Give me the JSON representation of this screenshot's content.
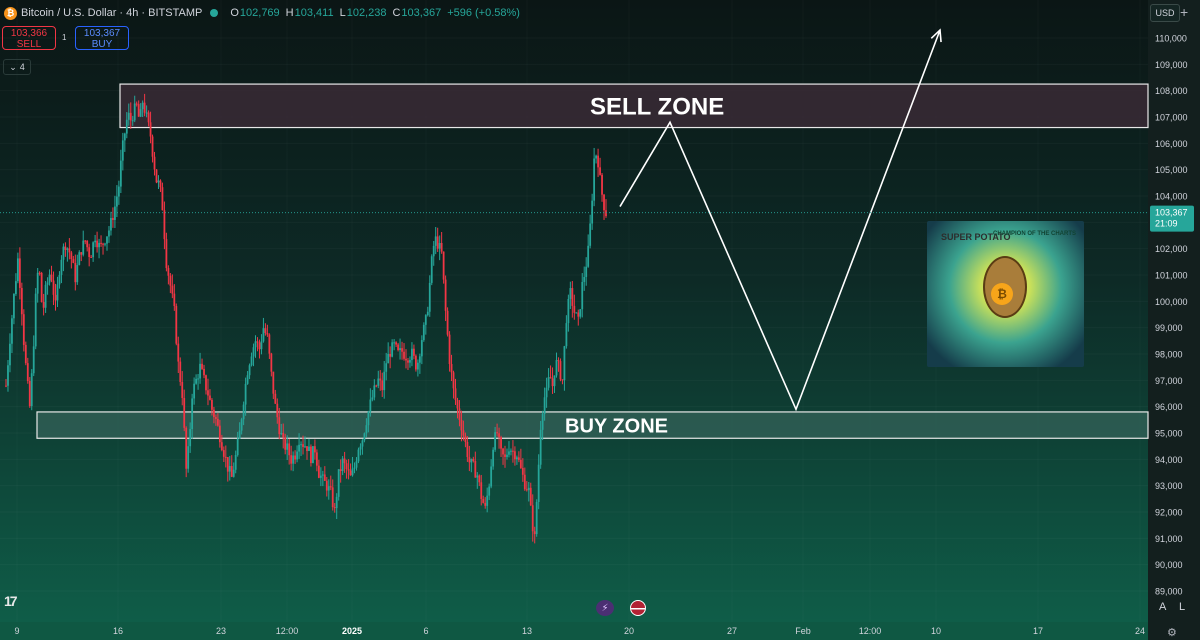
{
  "header": {
    "symbol": "Bitcoin / U.S. Dollar · 4h · BITSTAMP",
    "o_label": "O",
    "o": "102,769",
    "h_label": "H",
    "h": "103,411",
    "l_label": "L",
    "l": "102,238",
    "c_label": "C",
    "c": "103,367",
    "change": "+596 (+0.58%)",
    "btc_glyph": "₿",
    "icon": "bitcoin-icon"
  },
  "trade": {
    "sell_price": "103,366",
    "sell_label": "SELL",
    "buy_price": "103,367",
    "buy_label": "BUY",
    "spread": "1"
  },
  "indicators_count": "4",
  "currency": "USD",
  "axis_buttons": {
    "auto": "A",
    "log": "L"
  },
  "chart_data": {
    "type": "candlestick",
    "y_unit": "USD",
    "ylim": [
      88700,
      111300
    ],
    "y_ticks": [
      "89,000",
      "90,000",
      "91,000",
      "92,000",
      "93,000",
      "94,000",
      "95,000",
      "96,000",
      "97,000",
      "98,000",
      "99,000",
      "100,000",
      "101,000",
      "102,000",
      "103,000",
      "104,000",
      "105,000",
      "106,000",
      "107,000",
      "108,000",
      "109,000",
      "110,000"
    ],
    "x_ticks": [
      "9",
      "16",
      "23",
      "12:00",
      "2025",
      "6",
      "13",
      "20",
      "27",
      "Feb",
      "12:00",
      "10",
      "17",
      "24"
    ],
    "last_price": "103,367",
    "last_price_value": 103367,
    "countdown": "21:09",
    "candle_close_path": [
      [
        0,
        96800
      ],
      [
        4,
        98600
      ],
      [
        8,
        100200
      ],
      [
        12,
        101600
      ],
      [
        15,
        100300
      ],
      [
        18,
        98500
      ],
      [
        21,
        97100
      ],
      [
        24,
        96000
      ],
      [
        27,
        97700
      ],
      [
        30,
        100100
      ],
      [
        33,
        101500
      ],
      [
        37,
        99500
      ],
      [
        40,
        100400
      ],
      [
        45,
        101200
      ],
      [
        50,
        99800
      ],
      [
        55,
        101600
      ],
      [
        60,
        102200
      ],
      [
        65,
        101800
      ],
      [
        70,
        100900
      ],
      [
        75,
        101900
      ],
      [
        80,
        102300
      ],
      [
        85,
        101700
      ],
      [
        90,
        102500
      ],
      [
        95,
        102000
      ],
      [
        100,
        102400
      ],
      [
        105,
        102800
      ],
      [
        110,
        103600
      ],
      [
        114,
        104400
      ],
      [
        117,
        105600
      ],
      [
        120,
        106400
      ],
      [
        123,
        107100
      ],
      [
        126,
        106900
      ],
      [
        129,
        107200
      ],
      [
        132,
        107400
      ],
      [
        135,
        106800
      ],
      [
        138,
        107600
      ],
      [
        140,
        107300
      ],
      [
        143,
        106800
      ],
      [
        146,
        106300
      ],
      [
        149,
        105400
      ],
      [
        152,
        104600
      ],
      [
        155,
        104400
      ],
      [
        158,
        103600
      ],
      [
        162,
        101500
      ],
      [
        166,
        100600
      ],
      [
        170,
        99600
      ],
      [
        174,
        97600
      ],
      [
        178,
        96500
      ],
      [
        182,
        93600
      ],
      [
        185,
        94600
      ],
      [
        188,
        96500
      ],
      [
        192,
        97000
      ],
      [
        196,
        97500
      ],
      [
        200,
        97000
      ],
      [
        204,
        96500
      ],
      [
        208,
        95900
      ],
      [
        212,
        95500
      ],
      [
        216,
        94900
      ],
      [
        220,
        94300
      ],
      [
        224,
        93700
      ],
      [
        228,
        93300
      ],
      [
        232,
        94100
      ],
      [
        236,
        95000
      ],
      [
        240,
        96300
      ],
      [
        244,
        97400
      ],
      [
        248,
        98100
      ],
      [
        252,
        98500
      ],
      [
        256,
        98200
      ],
      [
        260,
        99000
      ],
      [
        264,
        98600
      ],
      [
        268,
        97200
      ],
      [
        272,
        96000
      ],
      [
        276,
        95200
      ],
      [
        280,
        94600
      ],
      [
        284,
        94400
      ],
      [
        288,
        94000
      ],
      [
        292,
        94200
      ],
      [
        296,
        94800
      ],
      [
        300,
        94600
      ],
      [
        304,
        94500
      ],
      [
        308,
        94100
      ],
      [
        312,
        94400
      ],
      [
        316,
        93500
      ],
      [
        320,
        93200
      ],
      [
        324,
        93000
      ],
      [
        328,
        92700
      ],
      [
        332,
        92000
      ],
      [
        336,
        93400
      ],
      [
        340,
        93900
      ],
      [
        344,
        93600
      ],
      [
        348,
        93300
      ],
      [
        352,
        93700
      ],
      [
        356,
        94500
      ],
      [
        360,
        94800
      ],
      [
        364,
        95500
      ],
      [
        368,
        96100
      ],
      [
        372,
        96600
      ],
      [
        376,
        97000
      ],
      [
        380,
        96700
      ],
      [
        384,
        97700
      ],
      [
        388,
        98100
      ],
      [
        392,
        98300
      ],
      [
        396,
        98000
      ],
      [
        400,
        98100
      ],
      [
        405,
        97900
      ],
      [
        410,
        98000
      ],
      [
        415,
        97500
      ],
      [
        420,
        98600
      ],
      [
        425,
        99400
      ],
      [
        430,
        101500
      ],
      [
        433,
        102400
      ],
      [
        436,
        102200
      ],
      [
        440,
        101800
      ],
      [
        444,
        99600
      ],
      [
        448,
        97800
      ],
      [
        452,
        96600
      ],
      [
        456,
        95900
      ],
      [
        460,
        95300
      ],
      [
        464,
        94600
      ],
      [
        468,
        93900
      ],
      [
        472,
        93700
      ],
      [
        476,
        93400
      ],
      [
        480,
        92600
      ],
      [
        484,
        92100
      ],
      [
        488,
        93100
      ],
      [
        492,
        94600
      ],
      [
        496,
        95000
      ],
      [
        500,
        94200
      ],
      [
        504,
        94000
      ],
      [
        508,
        94500
      ],
      [
        512,
        94300
      ],
      [
        516,
        94200
      ],
      [
        520,
        93600
      ],
      [
        524,
        93100
      ],
      [
        528,
        92800
      ],
      [
        531,
        91700
      ],
      [
        534,
        91000
      ],
      [
        537,
        93100
      ],
      [
        540,
        95300
      ],
      [
        543,
        96300
      ],
      [
        546,
        96500
      ],
      [
        549,
        97200
      ],
      [
        552,
        96800
      ],
      [
        555,
        97700
      ],
      [
        558,
        97500
      ],
      [
        562,
        97000
      ],
      [
        566,
        99400
      ],
      [
        570,
        100300
      ],
      [
        574,
        99600
      ],
      [
        578,
        99200
      ],
      [
        582,
        100600
      ],
      [
        585,
        101200
      ],
      [
        588,
        101900
      ],
      [
        591,
        103300
      ],
      [
        594,
        105400
      ],
      [
        597,
        105700
      ],
      [
        600,
        104600
      ],
      [
        603,
        103800
      ],
      [
        606,
        103367
      ]
    ],
    "sell_zone": {
      "label": "SELL ZONE",
      "from": 106600,
      "to": 108250
    },
    "buy_zone": {
      "label": "BUY ZONE",
      "from": 94800,
      "to": 95800
    },
    "projection_path": [
      [
        620,
        103600
      ],
      [
        670,
        106800
      ],
      [
        796,
        95900
      ],
      [
        940,
        110300
      ]
    ],
    "colors": {
      "up": "#26a69a",
      "down": "#f23645",
      "zone_sell": "#3a2a35",
      "zone_buy": "#2f5e55",
      "projection": "#ffffff"
    }
  },
  "events": {
    "crypto_icon": "lightning-icon",
    "us_icon": "us-flag-icon",
    "crypto_glyph": "⚡"
  },
  "mascot": {
    "title": "SUPER POTATO",
    "tagline": "CHAMPION OF THE CHARTS",
    "coin_glyph": "₿",
    "icon": "potato-mascot-image"
  }
}
